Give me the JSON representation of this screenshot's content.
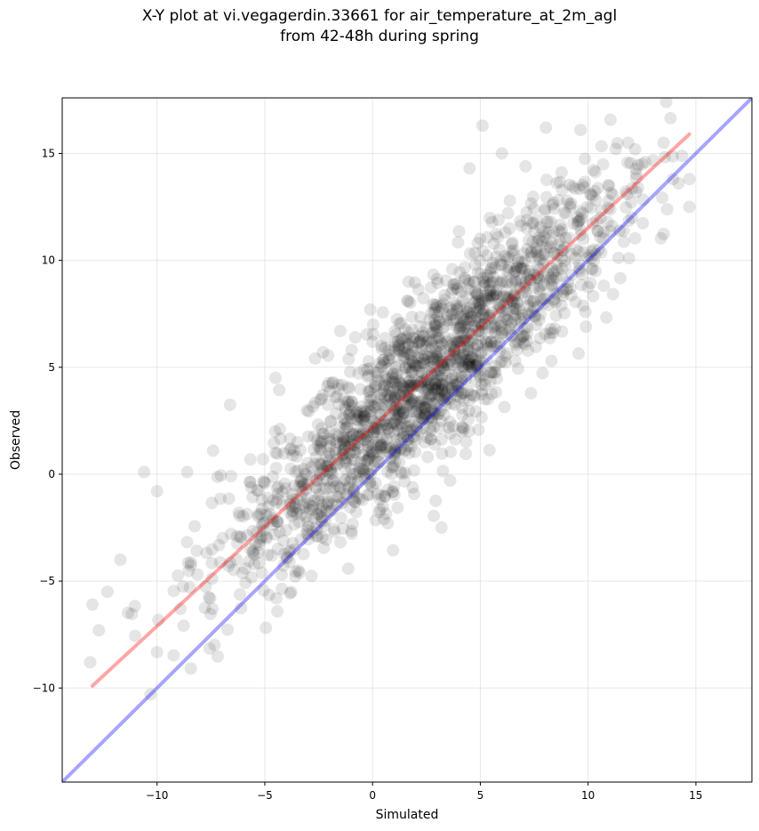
{
  "chart_data": {
    "type": "scatter",
    "title_line1": "X-Y plot at vi.vegagerdin.33661 for air_temperature_at_2m_agl",
    "title_line2": "from 42-48h during spring",
    "xlabel": "Simulated",
    "ylabel": "Observed",
    "xlim": [
      -14.4,
      17.6
    ],
    "ylim": [
      -14.4,
      17.6
    ],
    "xticks": [
      -10,
      -5,
      0,
      5,
      10,
      15
    ],
    "yticks": [
      -10,
      -5,
      0,
      5,
      10,
      15
    ],
    "xtick_labels": [
      "−10",
      "−5",
      "0",
      "5",
      "10",
      "15"
    ],
    "ytick_labels": [
      "−10",
      "−5",
      "0",
      "5",
      "10",
      "15"
    ],
    "grid": true,
    "marker_color": "#000000",
    "marker_alpha": 0.1,
    "point_cloud": {
      "count": 1800,
      "x_range": [
        -13.2,
        14.8
      ],
      "slope": 0.92,
      "intercept": 2.2,
      "noise_sd": 2.0
    },
    "points_notable": [
      {
        "x": -13.0,
        "y": -6.1
      },
      {
        "x": -12.7,
        "y": -7.3
      },
      {
        "x": -12.3,
        "y": -5.5
      },
      {
        "x": -13.1,
        "y": -8.8
      },
      {
        "x": -11.7,
        "y": -4.0
      },
      {
        "x": -10.6,
        "y": 0.1
      },
      {
        "x": -10.3,
        "y": -10.3
      },
      {
        "x": -10.0,
        "y": -0.8
      },
      {
        "x": -8.6,
        "y": 0.1
      },
      {
        "x": -7.4,
        "y": 1.1
      },
      {
        "x": -4.5,
        "y": 4.5
      },
      {
        "x": -2.3,
        "y": 5.7
      },
      {
        "x": -1.5,
        "y": 6.7
      },
      {
        "x": -0.8,
        "y": 6.4
      },
      {
        "x": 3.2,
        "y": -2.5
      },
      {
        "x": 3.6,
        "y": -0.3
      },
      {
        "x": 4.5,
        "y": 14.3
      },
      {
        "x": 5.1,
        "y": 16.3
      },
      {
        "x": 6.0,
        "y": 15.0
      },
      {
        "x": 7.1,
        "y": 14.4
      },
      {
        "x": 8.0,
        "y": 12.4
      },
      {
        "x": 8.3,
        "y": 5.3
      },
      {
        "x": 9.9,
        "y": 6.9
      },
      {
        "x": 10.5,
        "y": 10.5
      },
      {
        "x": 11.9,
        "y": 10.1
      },
      {
        "x": 12.5,
        "y": 14.5
      },
      {
        "x": 13.5,
        "y": 15.5
      },
      {
        "x": 14.2,
        "y": 13.6
      },
      {
        "x": 14.7,
        "y": 12.5
      },
      {
        "x": 14.7,
        "y": 13.8
      }
    ],
    "lines": [
      {
        "color": "#ff0000",
        "alpha": 0.35,
        "x": [
          -13.0,
          14.7
        ],
        "y": [
          -9.9,
          15.9
        ]
      },
      {
        "color": "#0000ff",
        "alpha": 0.35,
        "x": [
          -14.4,
          17.6
        ],
        "y": [
          -14.4,
          17.6
        ]
      }
    ]
  }
}
